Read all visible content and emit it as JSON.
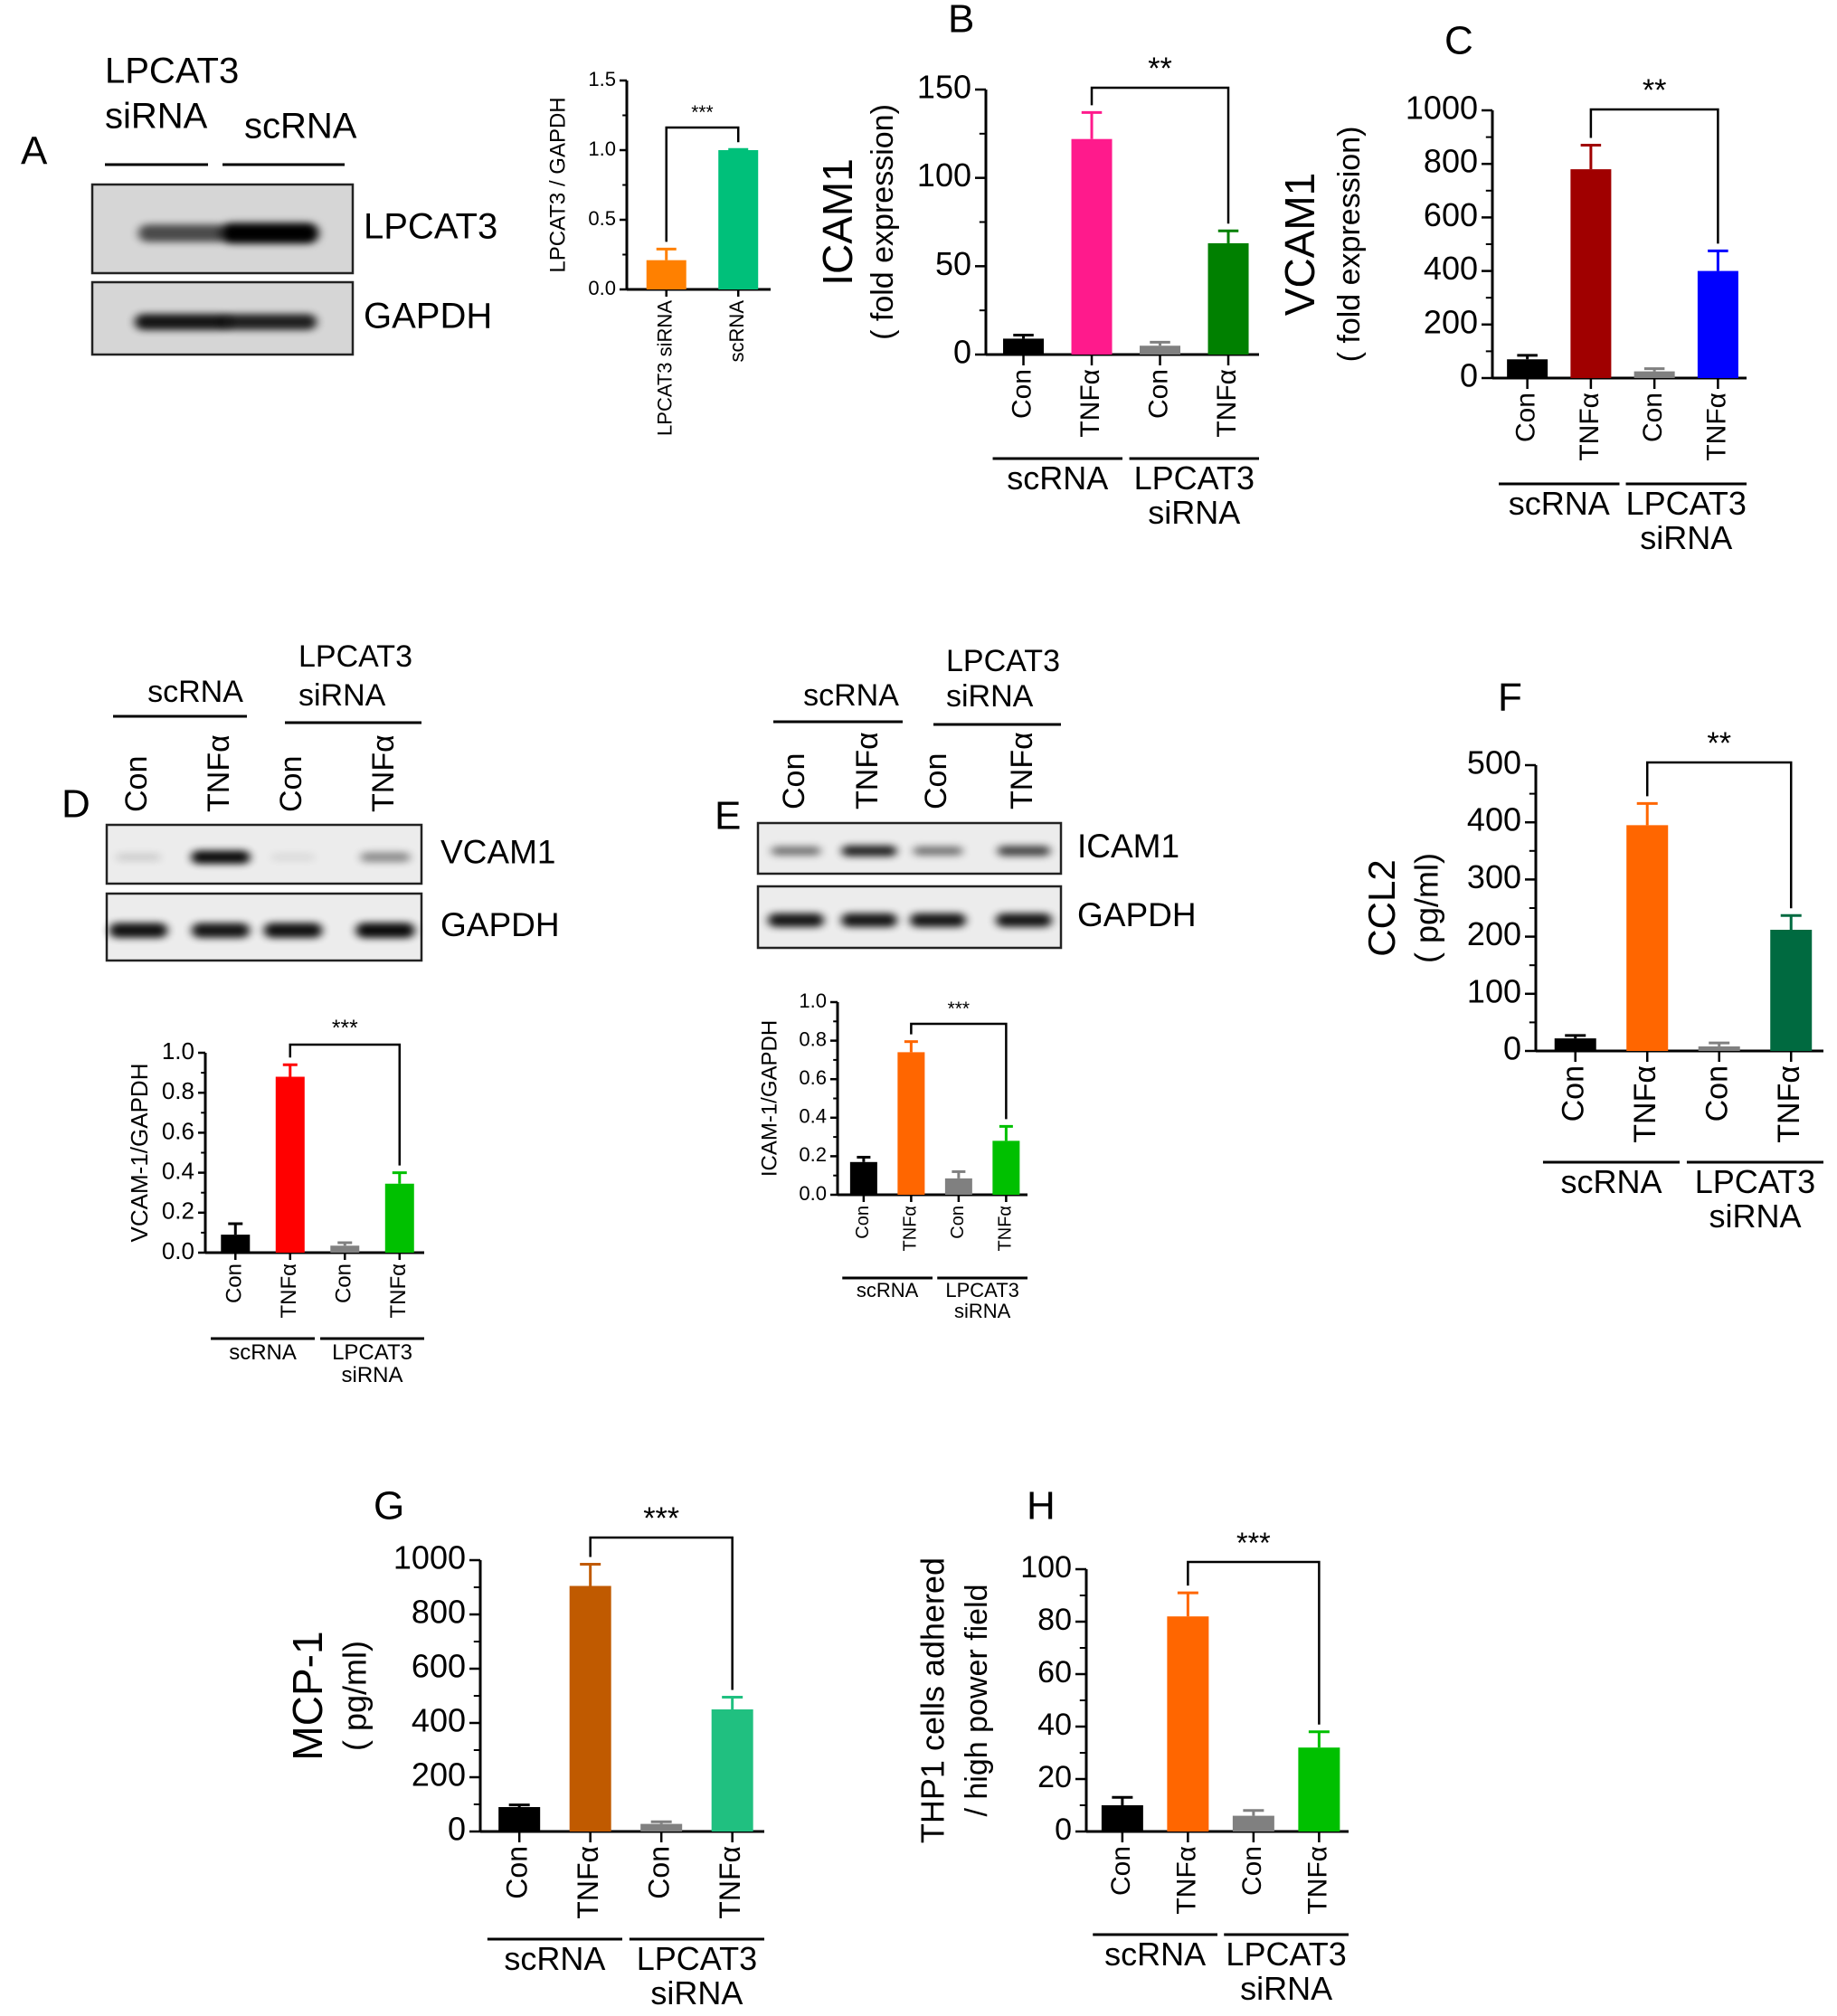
{
  "panel_labels": [
    "A",
    "B",
    "C",
    "D",
    "E",
    "F",
    "G",
    "H"
  ],
  "blots": [
    {
      "panel": "A",
      "groups": [
        {
          "lines": [
            "LPCAT3",
            "siRNA"
          ]
        },
        {
          "lines": [
            "scRNA"
          ]
        }
      ],
      "lanes": [],
      "rows": [
        {
          "label": "LPCAT3",
          "band_intensity": [
            0.65,
            1.0
          ]
        },
        {
          "label": "GAPDH",
          "band_intensity": [
            0.9,
            0.85
          ]
        }
      ]
    },
    {
      "panel": "D",
      "groups": [
        {
          "lines": [
            "scRNA"
          ]
        },
        {
          "lines": [
            "LPCAT3",
            "siRNA"
          ]
        }
      ],
      "lanes": [
        "Con",
        "TNFα",
        "Con",
        "TNFα"
      ],
      "rows": [
        {
          "label": "VCAM1",
          "band_intensity": [
            0.12,
            0.95,
            0.07,
            0.4
          ]
        },
        {
          "label": "GAPDH",
          "band_intensity": [
            0.92,
            0.9,
            0.92,
            0.95
          ]
        }
      ]
    },
    {
      "panel": "E",
      "groups": [
        {
          "lines": [
            "scRNA"
          ]
        },
        {
          "lines": [
            "LPCAT3",
            "siRNA"
          ]
        }
      ],
      "lanes": [
        "Con",
        "TNFα",
        "Con",
        "TNFα"
      ],
      "rows": [
        {
          "label": "ICAM1",
          "band_intensity": [
            0.5,
            0.85,
            0.5,
            0.7
          ]
        },
        {
          "label": "GAPDH",
          "band_intensity": [
            0.9,
            0.9,
            0.9,
            0.9
          ]
        }
      ]
    }
  ],
  "chart_data": [
    {
      "panel": "A",
      "type": "bar",
      "ylabel": [
        "LPCAT3 / GAPDH"
      ],
      "categories": [
        "LPCAT3 siRNA",
        "scRNA"
      ],
      "values": [
        0.21,
        1.0
      ],
      "errors": [
        0.08,
        0.005
      ],
      "colors": [
        "#ff8000",
        "#00c07a"
      ],
      "ylim": [
        0,
        1.5
      ],
      "yticks": [
        "0.0",
        "0.5",
        "1.0",
        "1.5"
      ],
      "significance": {
        "label": "***",
        "from": 0,
        "to": 1
      },
      "groups": []
    },
    {
      "panel": "B",
      "type": "bar",
      "ylabel": [
        "ICAM1",
        "( fold expression)"
      ],
      "categories": [
        "Con",
        "TNFα",
        "Con",
        "TNFα"
      ],
      "values": [
        9,
        122,
        5,
        63
      ],
      "errors": [
        2,
        15,
        2,
        7
      ],
      "colors": [
        "#000000",
        "#ff1a8c",
        "#808080",
        "#008000"
      ],
      "ylim": [
        0,
        150
      ],
      "yticks": [
        "0",
        "50",
        "100",
        "150"
      ],
      "significance": {
        "label": "**",
        "from": 1,
        "to": 3
      },
      "groups": [
        {
          "lines": [
            "scRNA"
          ]
        },
        {
          "lines": [
            "LPCAT3",
            "siRNA"
          ]
        }
      ]
    },
    {
      "panel": "C",
      "type": "bar",
      "ylabel": [
        "VCAM1",
        "( fold expression)"
      ],
      "categories": [
        "Con",
        "TNFα",
        "Con",
        "TNFα"
      ],
      "values": [
        70,
        780,
        25,
        400
      ],
      "errors": [
        15,
        90,
        10,
        75
      ],
      "colors": [
        "#000000",
        "#a00000",
        "#808080",
        "#0000ff"
      ],
      "ylim": [
        0,
        1000
      ],
      "yticks": [
        "0",
        "200",
        "400",
        "600",
        "800",
        "1000"
      ],
      "significance": {
        "label": "**",
        "from": 1,
        "to": 3
      },
      "groups": [
        {
          "lines": [
            "scRNA"
          ]
        },
        {
          "lines": [
            "LPCAT3",
            "siRNA"
          ]
        }
      ]
    },
    {
      "panel": "D",
      "type": "bar",
      "ylabel": [
        "VCAM-1/GAPDH"
      ],
      "categories": [
        "Con",
        "TNFα",
        "Con",
        "TNFα"
      ],
      "values": [
        0.09,
        0.88,
        0.035,
        0.345
      ],
      "errors": [
        0.055,
        0.06,
        0.015,
        0.055
      ],
      "colors": [
        "#000000",
        "#ff0000",
        "#808080",
        "#00c000"
      ],
      "ylim": [
        0,
        1.0
      ],
      "yticks": [
        "0.0",
        "0.2",
        "0.4",
        "0.6",
        "0.8",
        "1.0"
      ],
      "significance": {
        "label": "***",
        "from": 1,
        "to": 3
      },
      "groups": [
        {
          "lines": [
            "scRNA"
          ]
        },
        {
          "lines": [
            "LPCAT3",
            "siRNA"
          ]
        }
      ]
    },
    {
      "panel": "E",
      "type": "bar",
      "ylabel": [
        "ICAM-1/GAPDH"
      ],
      "categories": [
        "Con",
        "TNFα",
        "Con",
        "TNFα"
      ],
      "values": [
        0.17,
        0.74,
        0.085,
        0.28
      ],
      "errors": [
        0.025,
        0.055,
        0.035,
        0.075
      ],
      "colors": [
        "#000000",
        "#ff6600",
        "#808080",
        "#00c000"
      ],
      "ylim": [
        0,
        1.0
      ],
      "yticks": [
        "0.0",
        "0.2",
        "0.4",
        "0.6",
        "0.8",
        "1.0"
      ],
      "significance": {
        "label": "***",
        "from": 1,
        "to": 3
      },
      "groups": [
        {
          "lines": [
            "scRNA"
          ]
        },
        {
          "lines": [
            "LPCAT3",
            "siRNA"
          ]
        }
      ]
    },
    {
      "panel": "F",
      "type": "bar",
      "ylabel": [
        "CCL2",
        "( pg/ml)"
      ],
      "categories": [
        "Con",
        "TNFα",
        "Con",
        "TNFα"
      ],
      "values": [
        22,
        395,
        8,
        212
      ],
      "errors": [
        5,
        38,
        6,
        25
      ],
      "colors": [
        "#000000",
        "#ff6600",
        "#808080",
        "#006a40"
      ],
      "ylim": [
        0,
        500
      ],
      "yticks": [
        "0",
        "100",
        "200",
        "300",
        "400",
        "500"
      ],
      "significance": {
        "label": "**",
        "from": 1,
        "to": 3
      },
      "groups": [
        {
          "lines": [
            "scRNA"
          ]
        },
        {
          "lines": [
            "LPCAT3",
            "siRNA"
          ]
        }
      ]
    },
    {
      "panel": "G",
      "type": "bar",
      "ylabel": [
        "MCP-1",
        "( pg/ml)"
      ],
      "categories": [
        "Con",
        "TNFα",
        "Con",
        "TNFα"
      ],
      "values": [
        90,
        905,
        28,
        450
      ],
      "errors": [
        8,
        80,
        8,
        45
      ],
      "colors": [
        "#000000",
        "#c05a00",
        "#808080",
        "#20c080"
      ],
      "ylim": [
        0,
        1000
      ],
      "yticks": [
        "0",
        "200",
        "400",
        "600",
        "800",
        "1000"
      ],
      "significance": {
        "label": "***",
        "from": 1,
        "to": 3
      },
      "groups": [
        {
          "lines": [
            "scRNA"
          ]
        },
        {
          "lines": [
            "LPCAT3",
            "siRNA"
          ]
        }
      ]
    },
    {
      "panel": "H",
      "type": "bar",
      "ylabel": [
        "THP1 cells adhered",
        "/ high power field"
      ],
      "categories": [
        "Con",
        "TNFα",
        "Con",
        "TNFα"
      ],
      "values": [
        10,
        82,
        6,
        32
      ],
      "errors": [
        3,
        9,
        2,
        6
      ],
      "colors": [
        "#000000",
        "#ff6600",
        "#808080",
        "#00c000"
      ],
      "ylim": [
        0,
        100
      ],
      "yticks": [
        "0",
        "20",
        "40",
        "60",
        "80",
        "100"
      ],
      "significance": {
        "label": "***",
        "from": 1,
        "to": 3
      },
      "groups": [
        {
          "lines": [
            "scRNA"
          ]
        },
        {
          "lines": [
            "LPCAT3",
            "siRNA"
          ]
        }
      ]
    }
  ]
}
